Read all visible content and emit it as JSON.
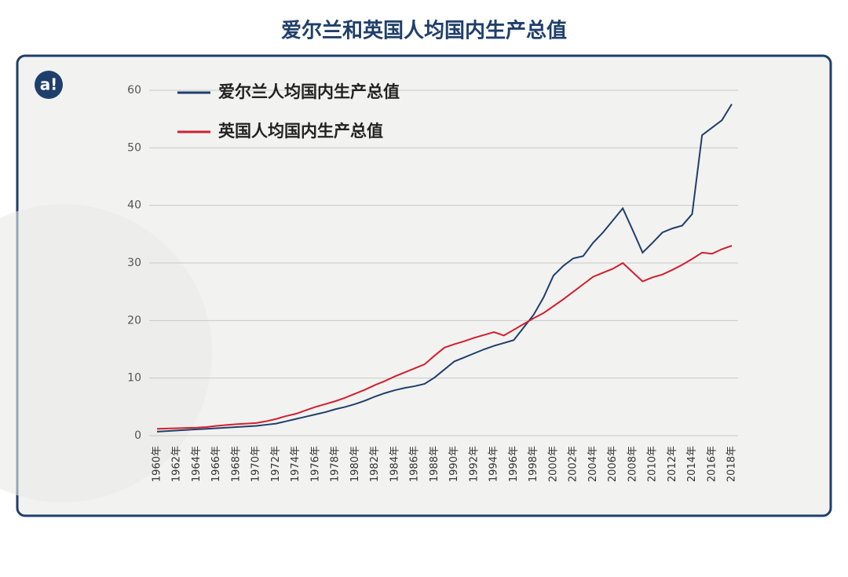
{
  "chart_data": {
    "type": "line",
    "title": "爱尔兰和英国人均国内生产总值",
    "categories": [
      "1960年",
      null,
      "1962年",
      null,
      "1964年",
      null,
      "1966年",
      null,
      "1968年",
      null,
      "1970年",
      null,
      "1972年",
      null,
      "1974年",
      null,
      "1976年",
      null,
      "1978年",
      null,
      "1980年",
      null,
      "1982年",
      null,
      "1984年",
      null,
      "1986年",
      null,
      "1988年",
      null,
      "1990年",
      null,
      "1992年",
      null,
      "1994年",
      null,
      "1996年",
      null,
      "1998年",
      null,
      "2000年",
      null,
      "2002年",
      null,
      "2004年",
      null,
      "2006年",
      null,
      "2008年",
      null,
      "2010年",
      null,
      "2012年",
      null,
      "2014年",
      null,
      "2016年",
      null,
      "2018年"
    ],
    "series": [
      {
        "name": "爱尔兰人均国内生产总值",
        "color": "#1f3f6b",
        "values": [
          0.7,
          0.8,
          0.9,
          1.0,
          1.1,
          1.2,
          1.3,
          1.4,
          1.5,
          1.6,
          1.7,
          1.9,
          2.1,
          2.5,
          2.9,
          3.3,
          3.7,
          4.1,
          4.6,
          5.0,
          5.5,
          6.1,
          6.8,
          7.4,
          7.9,
          8.3,
          8.6,
          9.0,
          10.1,
          11.5,
          12.9,
          13.6,
          14.3,
          15.0,
          15.6,
          16.1,
          16.6,
          18.8,
          21.0,
          24.0,
          27.8,
          29.5,
          30.8,
          31.2,
          33.5,
          35.3,
          37.4,
          39.5,
          35.7,
          31.8,
          33.5,
          35.3,
          36.0,
          36.5,
          38.5,
          52.2,
          53.5,
          54.8,
          57.6
        ]
      },
      {
        "name": "英国人均国内生产总值",
        "color": "#d0202e",
        "values": [
          1.2,
          1.25,
          1.3,
          1.35,
          1.4,
          1.5,
          1.7,
          1.85,
          2.0,
          2.1,
          2.2,
          2.5,
          2.9,
          3.4,
          3.8,
          4.4,
          5.0,
          5.5,
          6.0,
          6.6,
          7.3,
          8.0,
          8.8,
          9.5,
          10.3,
          11.0,
          11.7,
          12.4,
          13.9,
          15.3,
          15.9,
          16.4,
          17.0,
          17.5,
          18.0,
          17.4,
          18.4,
          19.4,
          20.4,
          21.3,
          22.5,
          23.7,
          25.0,
          26.3,
          27.6,
          28.3,
          29.0,
          30.0,
          28.4,
          26.8,
          27.5,
          28.0,
          28.8,
          29.7,
          30.7,
          31.8,
          31.6,
          32.4,
          33.0
        ]
      }
    ],
    "ylim": [
      0,
      60
    ],
    "yticks": [
      0,
      10,
      20,
      30,
      40,
      50,
      60
    ],
    "grid": true,
    "legend": "top-left"
  }
}
